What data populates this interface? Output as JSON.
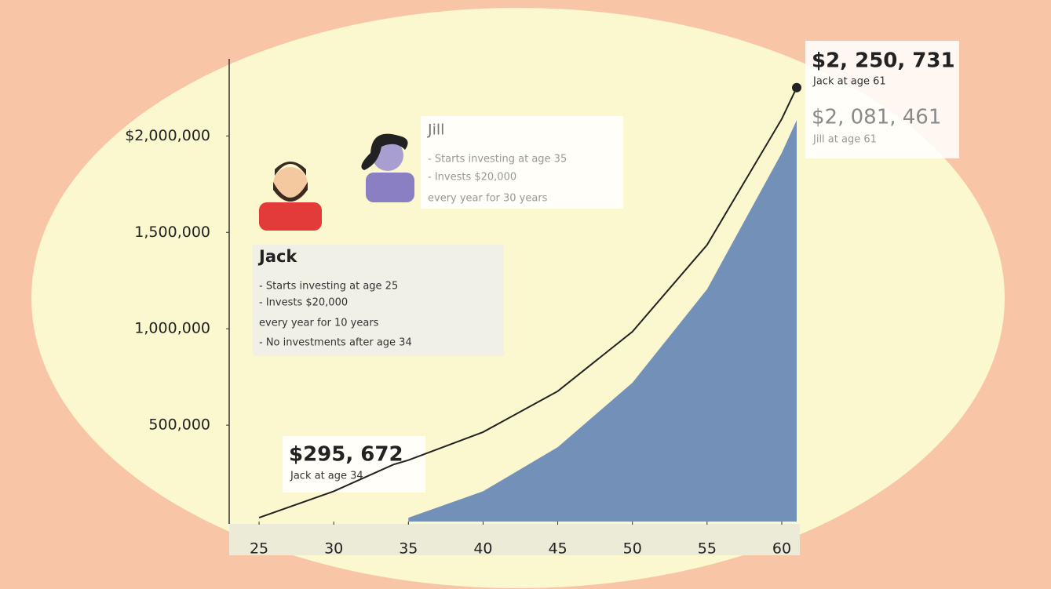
{
  "chart_data": {
    "type": "growth",
    "x": [
      25,
      30,
      34,
      35,
      40,
      45,
      50,
      55,
      60,
      61
    ],
    "series": [
      {
        "name": "Jack",
        "color": "#222222",
        "style": "line",
        "values": [
          20000,
          157000,
          295672,
          318700,
          464000,
          676000,
          985000,
          1435000,
          2088000,
          2250731
        ]
      },
      {
        "name": "Jill",
        "color": "#7390b8",
        "style": "area",
        "values": [
          null,
          null,
          null,
          20000,
          157000,
          386000,
          720000,
          1205000,
          1912000,
          2081461
        ]
      }
    ],
    "xlim": [
      23,
      61
    ],
    "xticks": [
      25,
      30,
      35,
      40,
      45,
      50,
      55,
      60
    ],
    "ylim": [
      0,
      2400000
    ],
    "yticks": [
      {
        "value": 500000,
        "label": "500,000"
      },
      {
        "value": 1000000,
        "label": "1,000,000"
      },
      {
        "value": 1500000,
        "label": "1,500,000"
      },
      {
        "value": 2000000,
        "label": "$2,000,000"
      }
    ],
    "annotations": {
      "jack_name": "Jack",
      "jack_lines": [
        "- Starts investing at age 25",
        "- Invests $20,000",
        "every year for 10 years",
        "- No investments after age 34"
      ],
      "jill_name": "Jill",
      "jill_lines": [
        "- Starts investing at age 35",
        "- Invests $20,000",
        "every year for 30 years"
      ],
      "jack_mid_value": "$295, 672",
      "jack_mid_note": "Jack at age 34",
      "jack_final_value": "$2, 250, 731",
      "jack_final_note": "Jack at age 61",
      "jill_final_value": "$2, 081, 461",
      "jill_final_note": "Jill at age 61"
    }
  }
}
